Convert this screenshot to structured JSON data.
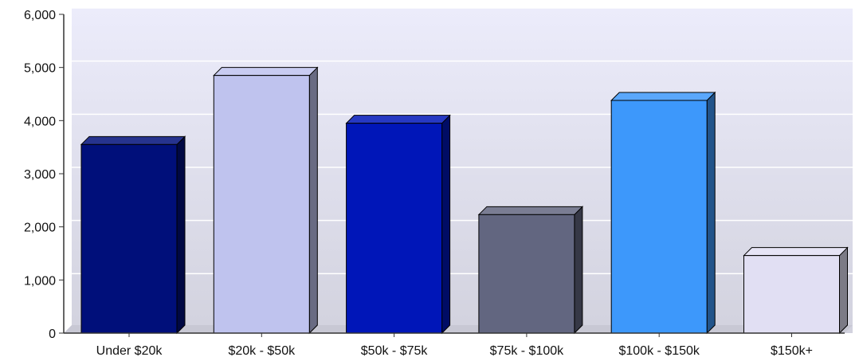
{
  "chart_data": {
    "type": "bar",
    "title": "",
    "xlabel": "",
    "ylabel": "",
    "categories": [
      "Under $20k",
      "$20k - $50k",
      "$50k - $75k",
      "$75k - $100k",
      "$100k - $150k",
      "$150k+"
    ],
    "values": [
      3550,
      4850,
      3950,
      2230,
      4380,
      1460
    ],
    "ylim": [
      0,
      6000
    ],
    "yticks": [
      0,
      1000,
      2000,
      3000,
      4000,
      5000,
      6000
    ],
    "ytick_labels": [
      "0",
      "1,000",
      "2,000",
      "3,000",
      "4,000",
      "5,000",
      "6,000"
    ],
    "grid": true,
    "style": "3d-bars",
    "bar_colors": [
      "#000f7a",
      "#bfc3ee",
      "#0016b8",
      "#626680",
      "#3d98fb",
      "#e1dff3"
    ],
    "background_gradient": [
      "#ececfb",
      "#d2d2de"
    ]
  }
}
